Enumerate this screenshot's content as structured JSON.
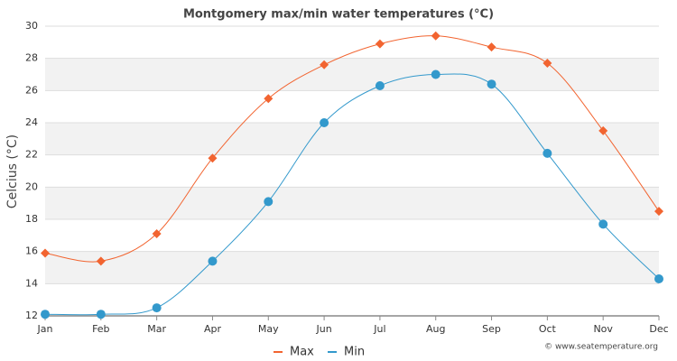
{
  "chart_data": {
    "type": "line",
    "title": "Montgomery max/min water temperatures (°C)",
    "y_label": "Celcius (°C)",
    "credit": "© www.seatemperature.org",
    "categories": [
      "Jan",
      "Feb",
      "Mar",
      "Apr",
      "May",
      "Jun",
      "Jul",
      "Aug",
      "Sep",
      "Oct",
      "Nov",
      "Dec"
    ],
    "series": [
      {
        "name": "Max",
        "color": "#f26430",
        "marker": "diamond",
        "values": [
          15.9,
          15.4,
          17.1,
          21.8,
          25.5,
          27.6,
          28.9,
          29.4,
          28.7,
          27.7,
          23.5,
          18.5
        ]
      },
      {
        "name": "Min",
        "color": "#3399cc",
        "marker": "circle",
        "values": [
          12.1,
          12.1,
          12.5,
          15.4,
          19.1,
          24.0,
          26.3,
          27.0,
          26.4,
          22.1,
          17.7,
          14.3
        ]
      }
    ],
    "ylim": [
      12,
      30
    ],
    "yticks": [
      12,
      14,
      16,
      18,
      20,
      22,
      24,
      26,
      28,
      30
    ],
    "grid": true
  }
}
